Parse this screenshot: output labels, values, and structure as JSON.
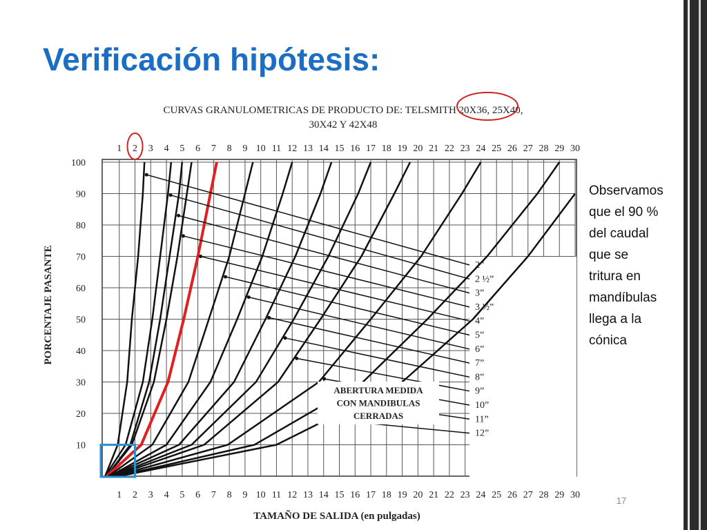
{
  "slide": {
    "title": "Verificación hipótesis:",
    "note": [
      "Observamos",
      "que el 90 %",
      "del caudal",
      "que se",
      "tritura en",
      "mandíbulas",
      "llega a la",
      "cónica"
    ],
    "page_number": "17"
  },
  "chart_data": {
    "type": "line",
    "title": [
      "CURVAS GRANULOMETRICAS DE PRODUCTO DE: TELSMITH 20X36, 25X40,",
      "30X42 Y 42X48"
    ],
    "x_label": "TAMAÑO DE SALIDA (en pulgadas)",
    "y_label": "PORCENTAJE PASANTE",
    "annotation": [
      "ABERTURA MEDIDA",
      "CON MANDIBULAS",
      "CERRADAS"
    ],
    "xlim": [
      0,
      30
    ],
    "ylim": [
      0,
      100
    ],
    "xticks": [
      1,
      2,
      3,
      4,
      5,
      6,
      7,
      8,
      9,
      10,
      11,
      12,
      13,
      14,
      15,
      16,
      17,
      18,
      19,
      20,
      21,
      22,
      23,
      24,
      25,
      26,
      27,
      28,
      29,
      30
    ],
    "yticks": [
      10,
      20,
      30,
      40,
      50,
      60,
      70,
      80,
      90,
      100
    ],
    "grid": true,
    "series": [
      {
        "name": "2”",
        "color": "#111111",
        "x": [
          0.1,
          0.9,
          1.5,
          1.8,
          2.2,
          2.5,
          2.6
        ],
        "values": [
          0,
          10,
          30,
          50,
          70,
          90,
          100
        ]
      },
      {
        "name": "2 ½”",
        "color": "#111111",
        "x": [
          0.1,
          1.4,
          2.5,
          3.1,
          3.6,
          4.1,
          4.3
        ],
        "values": [
          0,
          10,
          30,
          50,
          70,
          90,
          100
        ]
      },
      {
        "name": "3”",
        "color": "#111111",
        "x": [
          0.2,
          1.7,
          2.9,
          3.6,
          4.2,
          4.8,
          5.0
        ],
        "values": [
          0,
          10,
          30,
          50,
          70,
          90,
          100
        ]
      },
      {
        "name": "3 ½”",
        "color": "#111111",
        "x": [
          0.2,
          1.8,
          3.2,
          4.0,
          4.7,
          5.3,
          5.6
        ],
        "values": [
          0,
          10,
          30,
          50,
          70,
          90,
          100
        ]
      },
      {
        "name": "4”",
        "color": "#e02020",
        "x": [
          0.2,
          2.4,
          4.1,
          5.1,
          6.0,
          6.8,
          7.2
        ],
        "values": [
          0,
          10,
          30,
          50,
          70,
          90,
          100
        ]
      },
      {
        "name": "5”",
        "color": "#111111",
        "x": [
          0.3,
          3.1,
          5.4,
          6.7,
          8.0,
          9.0,
          9.5
        ],
        "values": [
          0,
          10,
          30,
          50,
          70,
          90,
          100
        ]
      },
      {
        "name": "6”",
        "color": "#111111",
        "x": [
          0.4,
          4.0,
          6.8,
          8.5,
          10.1,
          11.4,
          12
        ],
        "values": [
          0,
          10,
          30,
          50,
          70,
          90,
          100
        ]
      },
      {
        "name": "7”",
        "color": "#111111",
        "x": [
          0.4,
          4.8,
          8.3,
          10.3,
          12.2,
          13.8,
          14.5
        ],
        "values": [
          0,
          10,
          30,
          50,
          70,
          90,
          100
        ]
      },
      {
        "name": "8”",
        "color": "#111111",
        "x": [
          0.5,
          5.6,
          9.7,
          12.1,
          14.3,
          16.2,
          17
        ],
        "values": [
          0,
          10,
          30,
          50,
          70,
          90,
          100
        ]
      },
      {
        "name": "9”",
        "color": "#111111",
        "x": [
          0.6,
          6.4,
          11.1,
          13.8,
          16.4,
          18.5,
          19.5
        ],
        "values": [
          0,
          10,
          30,
          50,
          70,
          90,
          100
        ]
      },
      {
        "name": "10”",
        "color": "#111111",
        "x": [
          0.7,
          7.9,
          13.7,
          17.0,
          20.2,
          22.8,
          24
        ],
        "values": [
          0,
          10,
          30,
          50,
          70,
          90,
          100
        ]
      },
      {
        "name": "11”",
        "color": "#111111",
        "x": [
          0.9,
          9.6,
          16.5,
          20.6,
          24.4,
          27.6,
          29
        ],
        "values": [
          0,
          10,
          30,
          50,
          70,
          90,
          100
        ]
      },
      {
        "name": "12”",
        "color": "#111111",
        "x": [
          1.0,
          11,
          19,
          23.5,
          27,
          30
        ],
        "values": [
          0,
          10,
          30,
          50,
          70,
          90
        ]
      }
    ]
  }
}
